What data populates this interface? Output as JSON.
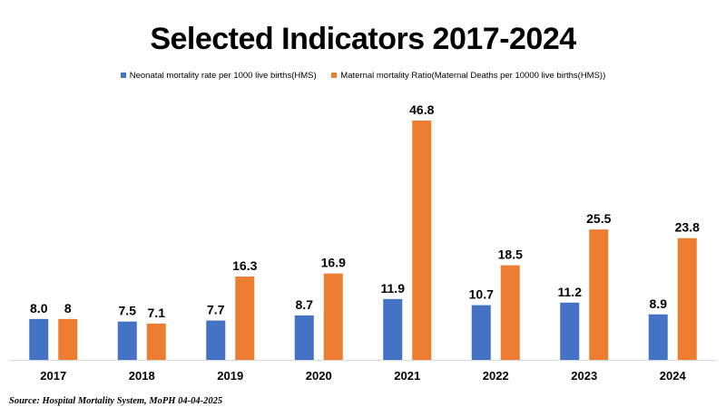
{
  "chart_data": {
    "type": "bar",
    "title": "Selected Indicators 2017-2024",
    "categories": [
      "2017",
      "2018",
      "2019",
      "2020",
      "2021",
      "2022",
      "2023",
      "2024"
    ],
    "series": [
      {
        "name": "Neonatal mortality rate per 1000 live births(HMS)",
        "color": "#4472C4",
        "values": [
          8.0,
          7.5,
          7.7,
          8.7,
          11.9,
          10.7,
          11.2,
          8.9
        ],
        "labels": [
          "8.0",
          "7.5",
          "7.7",
          "8.7",
          "11.9",
          "10.7",
          "11.2",
          "8.9"
        ]
      },
      {
        "name": "Maternal mortality Ratio(Maternal Deaths per 10000 live births(HMS))",
        "color": "#ED7D31",
        "values": [
          8,
          7.1,
          16.3,
          16.9,
          46.8,
          18.5,
          25.5,
          23.8
        ],
        "labels": [
          "8",
          "7.1",
          "16.3",
          "16.9",
          "46.8",
          "18.5",
          "25.5",
          "23.8"
        ]
      }
    ],
    "ylim": [
      0,
      48
    ],
    "grid": false,
    "legend_position": "top"
  },
  "source": "Source: Hospital Mortality System, MoPH 04-04-2025"
}
